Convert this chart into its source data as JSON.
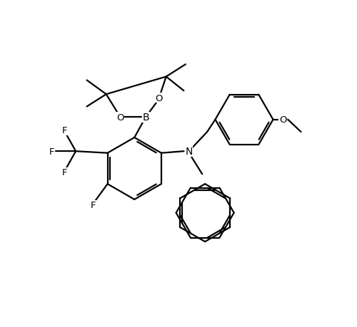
{
  "bg": "#ffffff",
  "lc": "#000000",
  "lw": 1.6,
  "fs": 9.5,
  "fig_w": 5.0,
  "fig_h": 4.6,
  "dpi": 100,
  "xlim": [
    0,
    10
  ],
  "ylim": [
    0,
    9.2
  ]
}
